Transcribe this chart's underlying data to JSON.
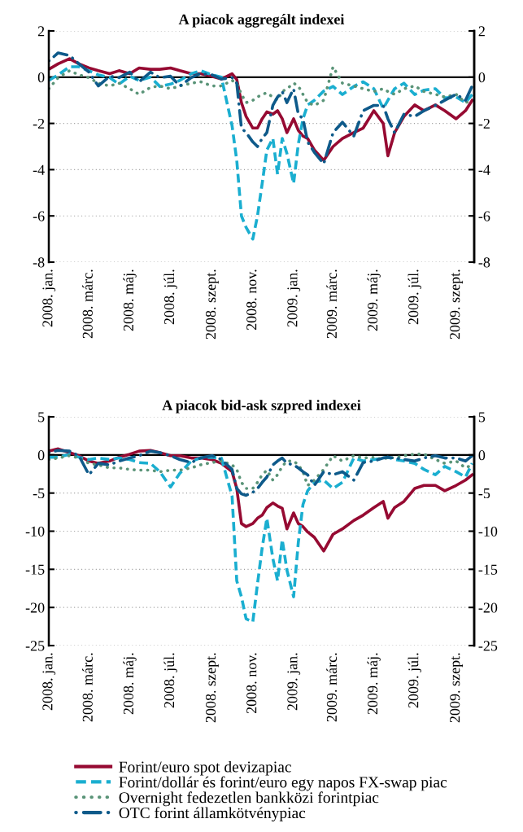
{
  "chart_data": [
    {
      "type": "line",
      "title": "A piacok aggregált indexei",
      "x": [
        "2008-01-01",
        "2008-01-15",
        "2008-02-01",
        "2008-02-15",
        "2008-03-01",
        "2008-03-15",
        "2008-04-01",
        "2008-04-15",
        "2008-05-01",
        "2008-05-15",
        "2008-06-01",
        "2008-06-15",
        "2008-07-01",
        "2008-07-15",
        "2008-08-01",
        "2008-08-15",
        "2008-09-01",
        "2008-09-15",
        "2008-10-01",
        "2008-10-08",
        "2008-10-15",
        "2008-10-22",
        "2008-11-01",
        "2008-11-08",
        "2008-11-15",
        "2008-11-22",
        "2008-12-01",
        "2008-12-08",
        "2008-12-15",
        "2008-12-22",
        "2009-01-01",
        "2009-01-08",
        "2009-01-15",
        "2009-01-22",
        "2009-02-01",
        "2009-02-15",
        "2009-03-01",
        "2009-03-15",
        "2009-04-01",
        "2009-04-15",
        "2009-05-01",
        "2009-05-15",
        "2009-05-22",
        "2009-06-01",
        "2009-06-15",
        "2009-07-01",
        "2009-07-15",
        "2009-08-01",
        "2009-08-15",
        "2009-09-01",
        "2009-09-15",
        "2009-09-25"
      ],
      "series": [
        {
          "name": "Forint/euro spot devizapiac",
          "color": "#960a32",
          "line_style": "solid",
          "values": [
            0.34,
            0.58,
            0.8,
            0.58,
            0.4,
            0.28,
            0.15,
            0.28,
            0.15,
            0.4,
            0.34,
            0.34,
            0.4,
            0.28,
            0.15,
            0.15,
            0.04,
            -0.08,
            0.15,
            -0.1,
            -1.1,
            -1.7,
            -2.2,
            -2.2,
            -1.8,
            -1.5,
            -1.6,
            -1.45,
            -1.8,
            -2.4,
            -1.8,
            -2.3,
            -2.55,
            -2.65,
            -3.15,
            -3.6,
            -3.0,
            -2.65,
            -2.4,
            -2.2,
            -1.45,
            -2.0,
            -3.4,
            -2.4,
            -1.7,
            -1.2,
            -1.45,
            -1.2,
            -1.45,
            -1.8,
            -1.45,
            -1.0
          ]
        },
        {
          "name": "Forint/dollár és forint/euro egy napos FX-swap piac",
          "color": "#1aaed0",
          "line_style": "dashed",
          "values": [
            -0.14,
            0.1,
            0.45,
            0.45,
            0.28,
            0.1,
            -0.02,
            -0.3,
            0.04,
            -0.14,
            0,
            -0.4,
            -0.3,
            -0.14,
            0.15,
            0.28,
            0.1,
            0,
            -2.1,
            -3.6,
            -6.0,
            -6.5,
            -7.0,
            -6.0,
            -4.6,
            -3.15,
            -2.65,
            -4.2,
            -2.65,
            -3.3,
            -4.6,
            -2.9,
            -1.8,
            -1.2,
            -1.0,
            -0.6,
            -0.4,
            -0.75,
            -0.4,
            -0.2,
            -0.5,
            -1.35,
            -1.0,
            -0.5,
            -0.26,
            -0.75,
            -0.56,
            -0.5,
            -0.9,
            -0.86,
            -1.1,
            -0.75
          ]
        },
        {
          "name": "Overnight fedezetlen bankközi forintpiac",
          "color": "#5a9478",
          "line_style": "dotted",
          "values": [
            -0.5,
            -0.02,
            0.28,
            0.1,
            -0.02,
            -0.26,
            -0.38,
            -0.26,
            -0.5,
            -0.74,
            -0.44,
            -0.38,
            -0.5,
            -0.38,
            -0.26,
            -0.2,
            -0.38,
            -0.38,
            -0.14,
            -0.26,
            -0.74,
            -1.1,
            -1.0,
            -0.86,
            -0.74,
            -0.68,
            -0.86,
            -1.0,
            -0.62,
            -0.5,
            -0.26,
            -0.38,
            -0.74,
            -1.1,
            -1.22,
            -1.0,
            0.45,
            -0.26,
            -0.38,
            -0.5,
            -0.62,
            -0.5,
            -0.62,
            -0.74,
            -0.5,
            -0.38,
            -0.62,
            -0.74,
            -0.86,
            -0.74,
            -1.1,
            -1.0
          ]
        },
        {
          "name": "OTC forint államkötvénypiac",
          "color": "#0e5a8a",
          "line_style": "dashdot",
          "values": [
            0.7,
            1.05,
            0.94,
            0.58,
            0.22,
            -0.38,
            0.04,
            -0.02,
            0.22,
            -0.2,
            0.22,
            -0.02,
            0.04,
            -0.38,
            -0.02,
            0.16,
            0.1,
            -0.08,
            -0.02,
            -0.26,
            -2.2,
            -2.4,
            -2.8,
            -3.0,
            -2.65,
            -2.4,
            -1.22,
            -0.86,
            -0.62,
            -1.1,
            -0.5,
            -1.6,
            -1.8,
            -2.8,
            -3.25,
            -3.75,
            -2.4,
            -1.95,
            -2.55,
            -1.45,
            -1.22,
            -1.22,
            -1.8,
            -2.4,
            -1.6,
            -1.7,
            -1.45,
            -1.22,
            -1.0,
            -0.74,
            -1.0,
            -0.38
          ]
        }
      ],
      "xlim": [
        "2008-01-01",
        "2009-09-28"
      ],
      "xticks": [
        {
          "value": "2008-01-01",
          "label": "2008. jan."
        },
        {
          "value": "2008-03-01",
          "label": "2008. márc."
        },
        {
          "value": "2008-05-01",
          "label": "2008. máj."
        },
        {
          "value": "2008-07-01",
          "label": "2008. júl."
        },
        {
          "value": "2008-09-01",
          "label": "2008. szept."
        },
        {
          "value": "2008-11-01",
          "label": "2008. nov."
        },
        {
          "value": "2009-01-01",
          "label": "2009. jan."
        },
        {
          "value": "2009-03-01",
          "label": "2009. márc."
        },
        {
          "value": "2009-05-01",
          "label": "2009. máj."
        },
        {
          "value": "2009-07-01",
          "label": "2009. júl."
        },
        {
          "value": "2009-09-01",
          "label": "2009. szept."
        }
      ],
      "ylim": [
        -8,
        2
      ],
      "yticks": [
        -8,
        -6,
        -4,
        -2,
        0,
        2
      ],
      "y2lim": [
        -8,
        2
      ],
      "y2ticks": [
        -8,
        -6,
        -4,
        -2,
        0,
        2
      ],
      "ref_lines": [
        {
          "axis": "y",
          "value": 0,
          "color": "#000000"
        }
      ],
      "grid": "y",
      "legend": "bottom"
    },
    {
      "type": "line",
      "title": "A piacok bid-ask szpred indexei",
      "x": [
        "2008-01-01",
        "2008-01-15",
        "2008-02-01",
        "2008-02-15",
        "2008-03-01",
        "2008-03-15",
        "2008-04-01",
        "2008-04-15",
        "2008-05-01",
        "2008-05-15",
        "2008-06-01",
        "2008-06-15",
        "2008-07-01",
        "2008-07-15",
        "2008-08-01",
        "2008-08-15",
        "2008-09-01",
        "2008-09-15",
        "2008-10-01",
        "2008-10-08",
        "2008-10-15",
        "2008-10-22",
        "2008-11-01",
        "2008-11-08",
        "2008-11-15",
        "2008-11-22",
        "2008-12-01",
        "2008-12-08",
        "2008-12-15",
        "2008-12-22",
        "2009-01-01",
        "2009-01-08",
        "2009-01-15",
        "2009-01-22",
        "2009-02-01",
        "2009-02-15",
        "2009-03-01",
        "2009-03-15",
        "2009-04-01",
        "2009-04-15",
        "2009-05-01",
        "2009-05-15",
        "2009-05-22",
        "2009-06-01",
        "2009-06-15",
        "2009-07-01",
        "2009-07-15",
        "2009-08-01",
        "2009-08-15",
        "2009-09-01",
        "2009-09-15",
        "2009-09-25"
      ],
      "series": [
        {
          "name": "Forint/euro spot devizapiac",
          "color": "#960a32",
          "line_style": "solid",
          "values": [
            0.5,
            0.8,
            0.3,
            -0.1,
            -0.8,
            -1.1,
            -0.8,
            -0.3,
            0.1,
            0.5,
            0.6,
            0.3,
            -0.1,
            -0.1,
            -0.4,
            -0.4,
            -0.6,
            -1.1,
            -2.2,
            -4.4,
            -9.0,
            -9.4,
            -9.0,
            -8.3,
            -7.9,
            -6.9,
            -6.3,
            -6.7,
            -7.0,
            -9.7,
            -7.6,
            -9.0,
            -9.4,
            -10.1,
            -10.8,
            -12.6,
            -10.4,
            -9.7,
            -8.6,
            -7.9,
            -6.9,
            -6.1,
            -8.3,
            -6.9,
            -6.1,
            -4.4,
            -4.0,
            -4.0,
            -4.7,
            -4.0,
            -3.3,
            -2.6
          ]
        },
        {
          "name": "Forint/dollár és forint/euro egy napos FX-swap piac",
          "color": "#1aaed0",
          "line_style": "dashed",
          "values": [
            -0.3,
            -0.3,
            0.1,
            -0.3,
            -0.6,
            -0.4,
            -0.6,
            -0.4,
            -0.6,
            -1.0,
            -1.1,
            -2.2,
            -4.2,
            -2.4,
            -0.8,
            -0.4,
            -0.3,
            -0.4,
            -5.4,
            -16.5,
            -18.6,
            -21.5,
            -21.9,
            -16.9,
            -12.2,
            -8.3,
            -13.6,
            -16.5,
            -11.1,
            -15.1,
            -18.6,
            -11.5,
            -6.5,
            -4.7,
            -3.6,
            -3.3,
            -4.4,
            -3.6,
            -0.4,
            -0.8,
            -0.6,
            -0.4,
            -0.3,
            -0.6,
            -0.8,
            -1.1,
            -1.9,
            -2.6,
            -1.5,
            -2.2,
            -2.9,
            -1.1
          ]
        },
        {
          "name": "Overnight fedezetlen bankközi forintpiac",
          "color": "#5a9478",
          "line_style": "dotted",
          "values": [
            -0.6,
            -0.4,
            -0.1,
            -0.4,
            -1.1,
            -1.3,
            -1.7,
            -1.7,
            -1.9,
            -2.0,
            -2.0,
            -2.2,
            -2.0,
            -2.0,
            -1.7,
            -1.3,
            -1.0,
            -0.8,
            -1.3,
            -1.9,
            -3.6,
            -4.4,
            -4.4,
            -3.6,
            -2.6,
            -2.0,
            -3.3,
            -2.6,
            -1.5,
            -0.8,
            -0.8,
            -1.3,
            -2.2,
            -4.0,
            -3.3,
            -1.9,
            -0.1,
            -0.8,
            -0.1,
            -0.4,
            -0.3,
            -0.6,
            -0.3,
            -0.4,
            -0.1,
            0.1,
            0.1,
            -0.6,
            -1.1,
            -0.8,
            -1.7,
            -1.3
          ]
        },
        {
          "name": "OTC forint államkötvénypiac",
          "color": "#0e5a8a",
          "line_style": "dashdot",
          "values": [
            0.3,
            0.6,
            0.5,
            -0.1,
            -2.6,
            -1.1,
            -1.3,
            -0.8,
            -0.4,
            -0.1,
            0.5,
            0.3,
            -0.1,
            -0.6,
            -1.0,
            -0.4,
            -0.1,
            -0.6,
            -1.9,
            -4.4,
            -5.1,
            -5.3,
            -4.9,
            -4.4,
            -3.6,
            -2.9,
            -1.3,
            -0.8,
            -0.4,
            -1.1,
            -1.3,
            -1.7,
            -2.2,
            -2.6,
            -4.0,
            -2.2,
            -2.6,
            -2.2,
            -3.3,
            -1.0,
            -0.8,
            -0.4,
            -0.3,
            -0.4,
            -0.6,
            -0.8,
            -0.4,
            -0.1,
            -0.4,
            -0.4,
            -0.8,
            -0.1
          ]
        }
      ],
      "xlim": [
        "2008-01-01",
        "2009-09-28"
      ],
      "xticks": [
        {
          "value": "2008-01-01",
          "label": "2008. jan."
        },
        {
          "value": "2008-03-01",
          "label": "2008. márc."
        },
        {
          "value": "2008-05-01",
          "label": "2008. máj."
        },
        {
          "value": "2008-07-01",
          "label": "2008. júl."
        },
        {
          "value": "2008-09-01",
          "label": "2008. szept."
        },
        {
          "value": "2008-11-01",
          "label": "2008. nov."
        },
        {
          "value": "2009-01-01",
          "label": "2009. jan."
        },
        {
          "value": "2009-03-01",
          "label": "2009. márc."
        },
        {
          "value": "2009-05-01",
          "label": "2009. máj."
        },
        {
          "value": "2009-07-01",
          "label": "2009. júl."
        },
        {
          "value": "2009-09-01",
          "label": "2009. szept."
        }
      ],
      "ylim": [
        -25,
        5
      ],
      "yticks": [
        -25,
        -20,
        -15,
        -10,
        -5,
        0,
        5
      ],
      "y2lim": [
        -25,
        5
      ],
      "y2ticks": [
        -25,
        -20,
        -15,
        -10,
        -5,
        0,
        5
      ],
      "ref_lines": [
        {
          "axis": "y",
          "value": 0,
          "color": "#000000"
        }
      ],
      "grid": "y",
      "legend": "bottom"
    }
  ]
}
